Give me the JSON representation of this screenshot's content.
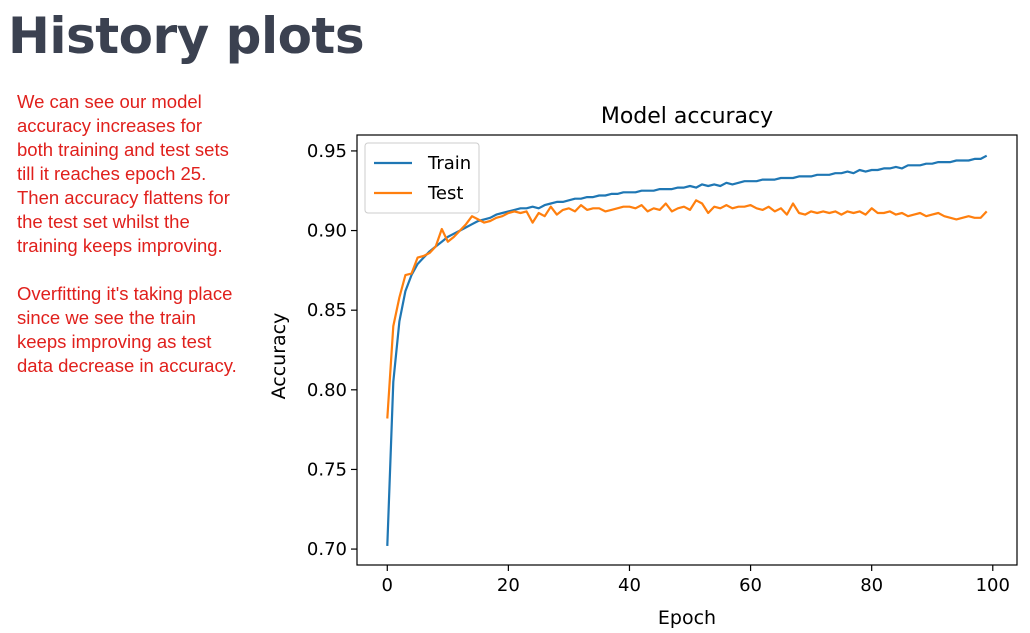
{
  "slide": {
    "title": "History plots",
    "notes": [
      "We can see our model accuracy increases for both training and test sets till it reaches epoch 25.",
      "Then accuracy flattens for the test set whilst the training keeps improving.",
      "Overfitting it's taking place since we see the train keeps improving as test data decrease in accuracy."
    ]
  },
  "chart_data": {
    "type": "line",
    "title": "Model accuracy",
    "xlabel": "Epoch",
    "ylabel": "Accuracy",
    "xlim": [
      -5,
      104
    ],
    "ylim": [
      0.69,
      0.96
    ],
    "xticks": [
      0,
      20,
      40,
      60,
      80,
      100
    ],
    "yticks": [
      0.7,
      0.75,
      0.8,
      0.85,
      0.9,
      0.95
    ],
    "ytick_labels": [
      "0.70",
      "0.75",
      "0.80",
      "0.85",
      "0.90",
      "0.95"
    ],
    "grid": false,
    "legend_position": "upper-left",
    "series": [
      {
        "name": "Train",
        "color": "#1f77b4",
        "x": [
          0,
          1,
          2,
          3,
          4,
          5,
          6,
          7,
          8,
          9,
          10,
          11,
          12,
          13,
          14,
          15,
          16,
          17,
          18,
          19,
          20,
          21,
          22,
          23,
          24,
          25,
          26,
          27,
          28,
          29,
          30,
          31,
          32,
          33,
          34,
          35,
          36,
          37,
          38,
          39,
          40,
          41,
          42,
          43,
          44,
          45,
          46,
          47,
          48,
          49,
          50,
          51,
          52,
          53,
          54,
          55,
          56,
          57,
          58,
          59,
          60,
          61,
          62,
          63,
          64,
          65,
          66,
          67,
          68,
          69,
          70,
          71,
          72,
          73,
          74,
          75,
          76,
          77,
          78,
          79,
          80,
          81,
          82,
          83,
          84,
          85,
          86,
          87,
          88,
          89,
          90,
          91,
          92,
          93,
          94,
          95,
          96,
          97,
          98,
          99
        ],
        "y": [
          0.702,
          0.805,
          0.843,
          0.862,
          0.872,
          0.879,
          0.883,
          0.887,
          0.89,
          0.893,
          0.896,
          0.898,
          0.9,
          0.902,
          0.904,
          0.906,
          0.907,
          0.908,
          0.91,
          0.911,
          0.912,
          0.913,
          0.914,
          0.914,
          0.915,
          0.914,
          0.916,
          0.917,
          0.918,
          0.918,
          0.919,
          0.92,
          0.92,
          0.921,
          0.921,
          0.922,
          0.922,
          0.923,
          0.923,
          0.924,
          0.924,
          0.924,
          0.925,
          0.925,
          0.925,
          0.926,
          0.926,
          0.926,
          0.927,
          0.927,
          0.928,
          0.927,
          0.929,
          0.928,
          0.929,
          0.928,
          0.93,
          0.929,
          0.93,
          0.931,
          0.931,
          0.931,
          0.932,
          0.932,
          0.932,
          0.933,
          0.933,
          0.933,
          0.934,
          0.934,
          0.934,
          0.935,
          0.935,
          0.935,
          0.936,
          0.936,
          0.937,
          0.936,
          0.938,
          0.937,
          0.938,
          0.938,
          0.939,
          0.939,
          0.94,
          0.939,
          0.941,
          0.941,
          0.941,
          0.942,
          0.942,
          0.943,
          0.943,
          0.943,
          0.944,
          0.944,
          0.944,
          0.945,
          0.945,
          0.947
        ]
      },
      {
        "name": "Test",
        "color": "#ff7f0e",
        "x": [
          0,
          1,
          2,
          3,
          4,
          5,
          6,
          7,
          8,
          9,
          10,
          11,
          12,
          13,
          14,
          15,
          16,
          17,
          18,
          19,
          20,
          21,
          22,
          23,
          24,
          25,
          26,
          27,
          28,
          29,
          30,
          31,
          32,
          33,
          34,
          35,
          36,
          37,
          38,
          39,
          40,
          41,
          42,
          43,
          44,
          45,
          46,
          47,
          48,
          49,
          50,
          51,
          52,
          53,
          54,
          55,
          56,
          57,
          58,
          59,
          60,
          61,
          62,
          63,
          64,
          65,
          66,
          67,
          68,
          69,
          70,
          71,
          72,
          73,
          74,
          75,
          76,
          77,
          78,
          79,
          80,
          81,
          82,
          83,
          84,
          85,
          86,
          87,
          88,
          89,
          90,
          91,
          92,
          93,
          94,
          95,
          96,
          97,
          98,
          99
        ],
        "y": [
          0.782,
          0.84,
          0.858,
          0.872,
          0.873,
          0.883,
          0.884,
          0.886,
          0.89,
          0.901,
          0.893,
          0.896,
          0.9,
          0.904,
          0.909,
          0.907,
          0.905,
          0.906,
          0.908,
          0.909,
          0.911,
          0.912,
          0.911,
          0.912,
          0.905,
          0.911,
          0.909,
          0.915,
          0.91,
          0.913,
          0.914,
          0.912,
          0.916,
          0.913,
          0.914,
          0.914,
          0.912,
          0.913,
          0.914,
          0.915,
          0.915,
          0.914,
          0.916,
          0.912,
          0.914,
          0.913,
          0.917,
          0.912,
          0.914,
          0.915,
          0.913,
          0.919,
          0.917,
          0.911,
          0.915,
          0.914,
          0.916,
          0.914,
          0.915,
          0.915,
          0.916,
          0.914,
          0.913,
          0.915,
          0.912,
          0.914,
          0.91,
          0.917,
          0.911,
          0.91,
          0.912,
          0.911,
          0.912,
          0.911,
          0.912,
          0.91,
          0.912,
          0.911,
          0.912,
          0.91,
          0.914,
          0.911,
          0.911,
          0.912,
          0.91,
          0.911,
          0.909,
          0.91,
          0.911,
          0.909,
          0.91,
          0.911,
          0.909,
          0.908,
          0.907,
          0.908,
          0.909,
          0.908,
          0.908,
          0.912
        ]
      }
    ]
  }
}
